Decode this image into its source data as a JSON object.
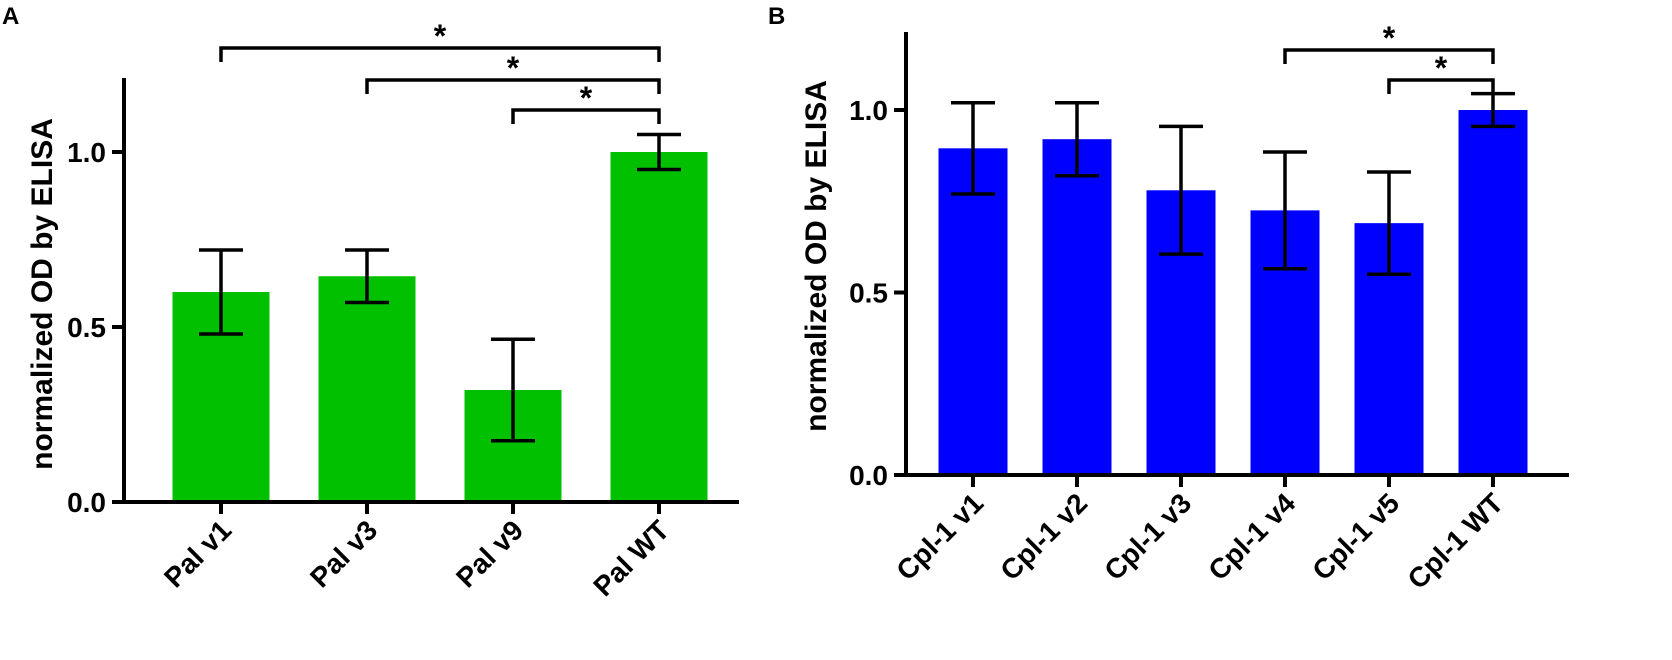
{
  "chart_data": [
    {
      "panel": "A",
      "type": "bar",
      "ylabel": "normalized OD by ELISA",
      "ylim": [
        0,
        1.2
      ],
      "yticks": [
        0.0,
        0.5,
        1.0
      ],
      "ytick_labels": [
        "0.0",
        "0.5",
        "1.0"
      ],
      "categories": [
        "Pal v1",
        "Pal v3",
        "Pal v9",
        "Pal WT"
      ],
      "values": [
        0.6,
        0.645,
        0.32,
        1.0
      ],
      "err_low": [
        0.48,
        0.57,
        0.175,
        0.95
      ],
      "err_high": [
        0.72,
        0.72,
        0.465,
        1.05
      ],
      "bar_color": "#00c000",
      "significance": [
        {
          "from": 0,
          "to": 3,
          "label": "*"
        },
        {
          "from": 1,
          "to": 3,
          "label": "*"
        },
        {
          "from": 2,
          "to": 3,
          "label": "*"
        }
      ]
    },
    {
      "panel": "B",
      "type": "bar",
      "ylabel": "normalized OD by ELISA",
      "ylim": [
        0,
        1.2
      ],
      "yticks": [
        0.0,
        0.5,
        1.0
      ],
      "ytick_labels": [
        "0.0",
        "0.5",
        "1.0"
      ],
      "categories": [
        "Cpl-1 v1",
        "Cpl-1 v2",
        "Cpl-1 v3",
        "Cpl-1 v4",
        "Cpl-1 v5",
        "Cpl-1 WT"
      ],
      "values": [
        0.895,
        0.92,
        0.78,
        0.725,
        0.69,
        1.0
      ],
      "err_low": [
        0.77,
        0.82,
        0.605,
        0.565,
        0.55,
        0.955
      ],
      "err_high": [
        1.02,
        1.02,
        0.955,
        0.885,
        0.83,
        1.045
      ],
      "bar_color": "#0000ff",
      "significance": [
        {
          "from": 3,
          "to": 5,
          "label": "*"
        },
        {
          "from": 4,
          "to": 5,
          "label": "*"
        }
      ]
    }
  ]
}
